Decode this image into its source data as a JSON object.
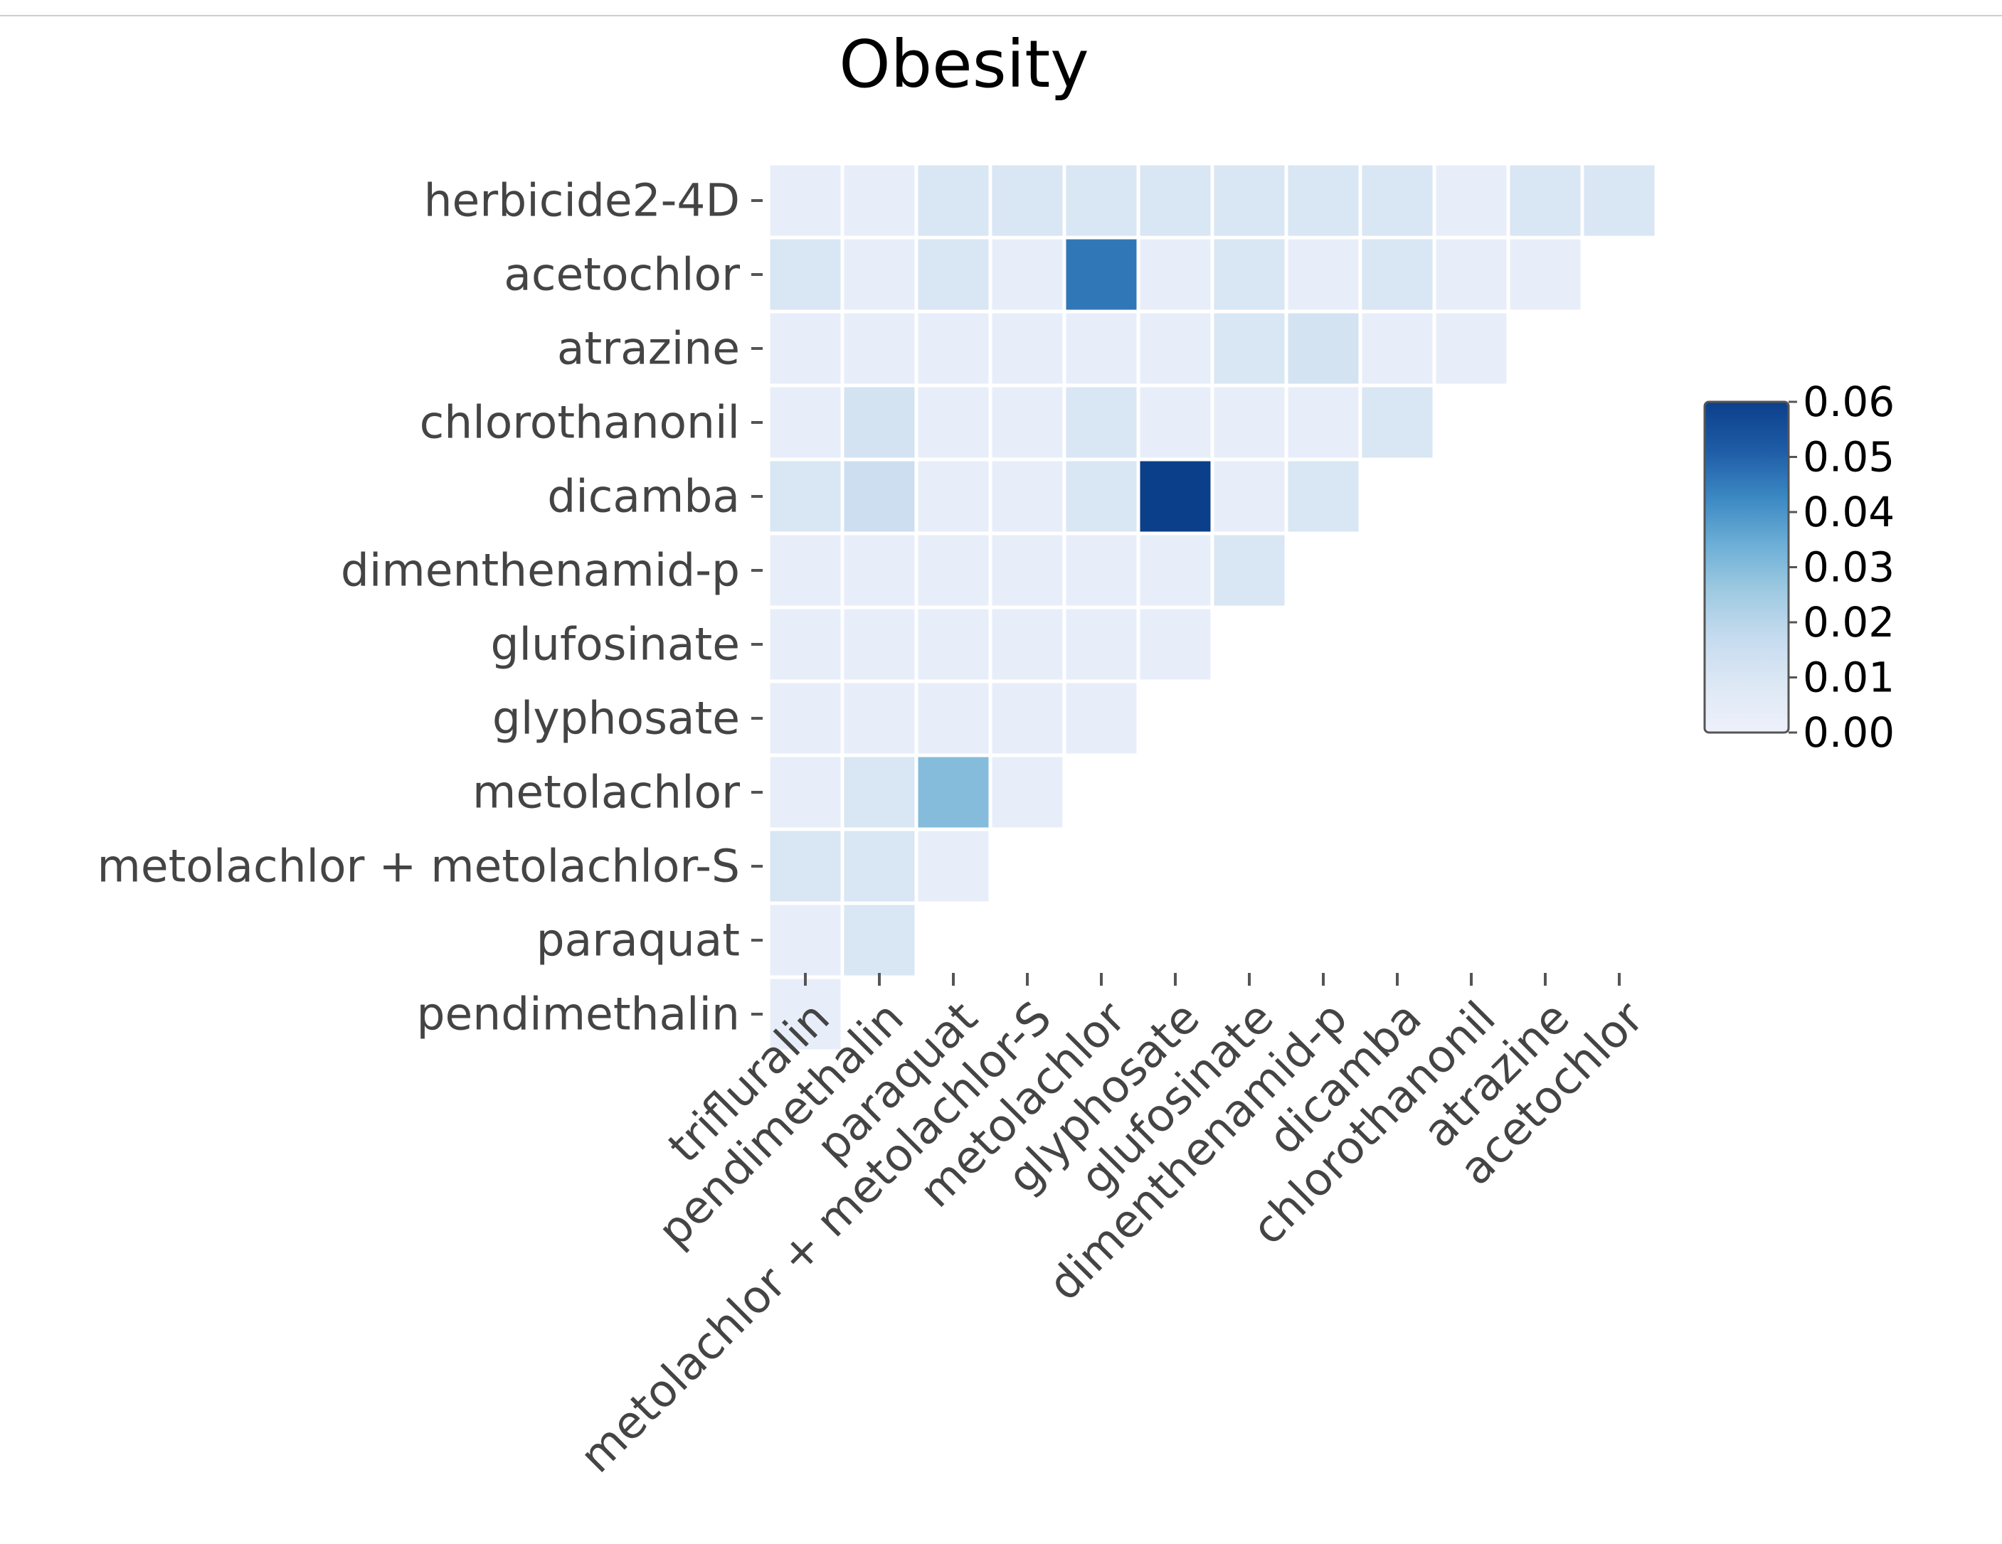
{
  "chart_data": {
    "type": "heatmap",
    "title": "Obesity",
    "rows": [
      "herbicide2-4D",
      "acetochlor",
      "atrazine",
      "chlorothanonil",
      "dicamba",
      "dimenthenamid-p",
      "glufosinate",
      "glyphosate",
      "metolachlor",
      "metolachlor + metolachlor-S",
      "paraquat",
      "pendimethalin"
    ],
    "columns": [
      "trifluralin",
      "pendimethalin",
      "paraquat",
      "metolachlor + metolachlor-S",
      "metolachlor",
      "glyphosate",
      "glufosinate",
      "dimenthenamid-p",
      "dicamba",
      "chlorothanonil",
      "atrazine",
      "acetochlor"
    ],
    "values": [
      [
        0.003,
        0.003,
        0.01,
        0.01,
        0.01,
        0.01,
        0.01,
        0.01,
        0.01,
        0.003,
        0.01,
        0.01
      ],
      [
        0.01,
        0.003,
        0.01,
        0.003,
        0.046,
        0.003,
        0.01,
        0.003,
        0.01,
        0.003,
        0.003
      ],
      [
        0.003,
        0.003,
        0.003,
        0.003,
        0.003,
        0.003,
        0.01,
        0.012,
        0.003,
        0.003
      ],
      [
        0.003,
        0.012,
        0.003,
        0.003,
        0.01,
        0.003,
        0.003,
        0.003,
        0.01
      ],
      [
        0.01,
        0.015,
        0.003,
        0.003,
        0.01,
        0.06,
        0.003,
        0.01
      ],
      [
        0.003,
        0.003,
        0.003,
        0.003,
        0.003,
        0.003,
        0.01
      ],
      [
        0.003,
        0.003,
        0.003,
        0.003,
        0.003,
        0.003
      ],
      [
        0.003,
        0.003,
        0.003,
        0.003,
        0.003
      ],
      [
        0.003,
        0.01,
        0.03,
        0.003
      ],
      [
        0.01,
        0.01,
        0.003
      ],
      [
        0.003,
        0.01
      ],
      [
        0.003
      ]
    ],
    "colorbar": {
      "ticks": [
        "0.00",
        "0.01",
        "0.02",
        "0.03",
        "0.04",
        "0.05",
        "0.06"
      ],
      "vmin": 0.0,
      "vmax": 0.06
    },
    "colormap_stops": [
      "#eef1fb",
      "#dde8f4",
      "#c6dbef",
      "#9ecae1",
      "#6baed6",
      "#3a87c2",
      "#1e5ba6",
      "#0c3f8a"
    ]
  }
}
